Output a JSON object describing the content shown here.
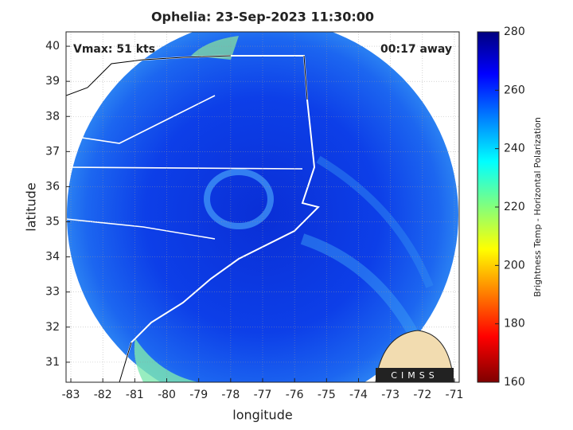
{
  "chart_data": {
    "type": "map",
    "title": "Ophelia: 23-Sep-2023 11:30:00",
    "annotations": [
      "Vmax: 51 kts",
      "00:17 away"
    ],
    "xlabel": "longitude",
    "ylabel": "latitude",
    "xlim": [
      -83.15,
      -70.85
    ],
    "xticks": [
      -83,
      -82,
      -81,
      -80,
      -79,
      -78,
      -77,
      -76,
      -75,
      -74,
      -73,
      -72,
      -71
    ],
    "ylim": [
      30.43,
      40.41
    ],
    "yticks": [
      31,
      32,
      33,
      34,
      35,
      36,
      37,
      38,
      39,
      40
    ],
    "grid": true,
    "colorbar": {
      "label": "Brightness Temp - Horizontal Polarization",
      "lim": [
        160,
        280
      ],
      "ticks": [
        160,
        180,
        200,
        220,
        240,
        260,
        280
      ]
    },
    "logo_text": "CIMSS"
  }
}
